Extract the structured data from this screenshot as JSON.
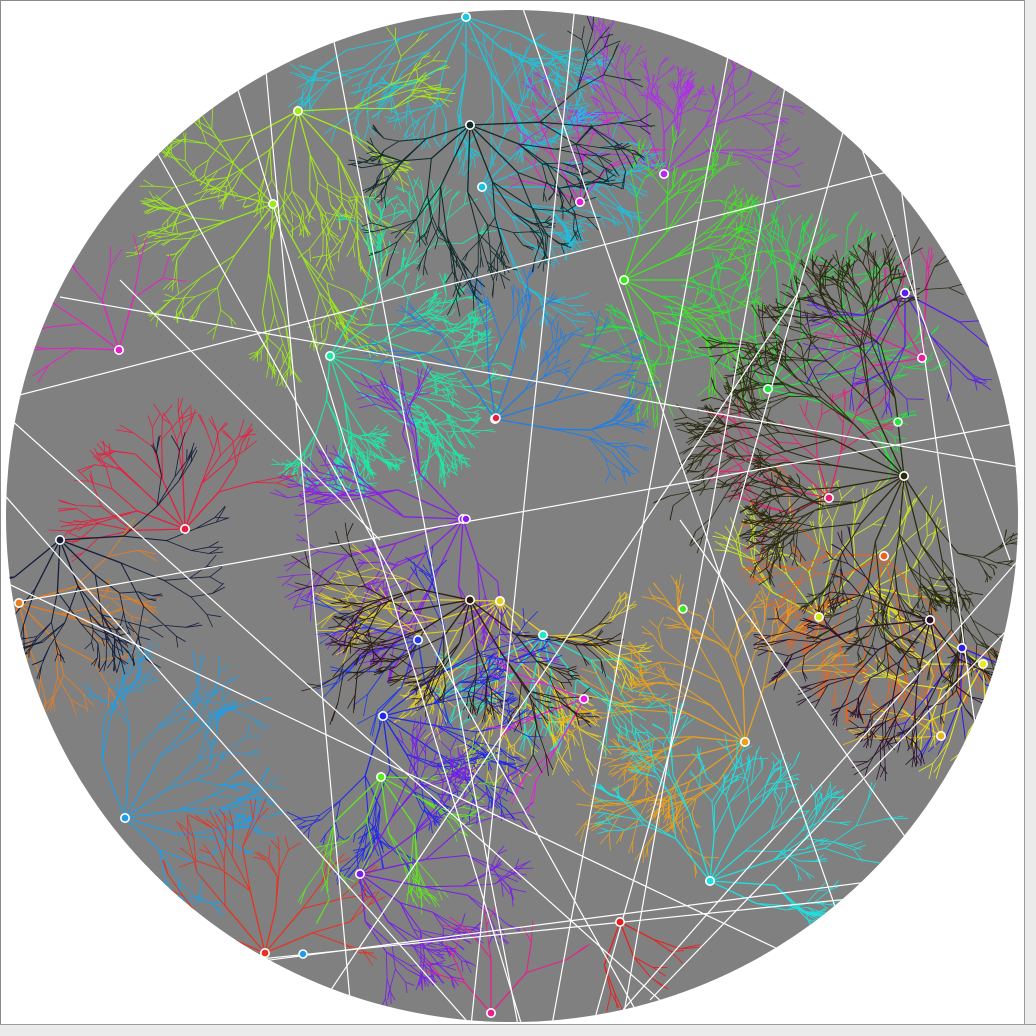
{
  "scene": {
    "background_color": "#ffffff",
    "arena_color": "#808080",
    "line_color": "#ffffff",
    "frame_color": "#ebebeb",
    "seed": 20240611
  },
  "colonies": [
    {
      "name": "cyan-top",
      "color": "#1ec8dc",
      "depth": 4,
      "branches": 7,
      "spread": 1.4
    },
    {
      "name": "violet-top",
      "color": "#b02ee8",
      "depth": 4,
      "branches": 7,
      "spread": 1.2
    },
    {
      "name": "lime-upper-left",
      "color": "#a6e81e",
      "depth": 4,
      "branches": 7,
      "spread": 1.5
    },
    {
      "name": "chartreuse-left",
      "color": "#9ae81e",
      "depth": 4,
      "branches": 6,
      "spread": 1.6
    },
    {
      "name": "cyan-center-top",
      "color": "#1ec0e0",
      "depth": 4,
      "branches": 7,
      "spread": 1.3
    },
    {
      "name": "magenta-small",
      "color": "#e81ed6",
      "depth": 2,
      "branches": 4,
      "spread": 1.0
    },
    {
      "name": "green-upper",
      "color": "#3ee81e",
      "depth": 4,
      "branches": 7,
      "spread": 1.4
    },
    {
      "name": "green-right",
      "color": "#1ee83e",
      "depth": 4,
      "branches": 8,
      "spread": 1.6
    },
    {
      "name": "magenta-right",
      "color": "#e81e9e",
      "depth": 2,
      "branches": 4,
      "spread": 1.0
    },
    {
      "name": "indigo-left",
      "color": "#5a1ee8",
      "depth": 3,
      "branches": 5,
      "spread": 1.2
    },
    {
      "name": "pink-left",
      "color": "#e81ec8",
      "depth": 2,
      "branches": 4,
      "spread": 1.0
    },
    {
      "name": "aquamarine-left",
      "color": "#1ee8a6",
      "depth": 5,
      "branches": 8,
      "spread": 1.5
    },
    {
      "name": "red-center",
      "color": "#e81e3e",
      "depth": 3,
      "branches": 7,
      "spread": 1.3
    },
    {
      "name": "blue-center",
      "color": "#1e7ee8",
      "depth": 4,
      "branches": 6,
      "spread": 1.3
    },
    {
      "name": "violet-center",
      "color": "#8a1ee8",
      "depth": 4,
      "branches": 8,
      "spread": 1.5
    },
    {
      "name": "yellow-right",
      "color": "#e8d01e",
      "depth": 4,
      "branches": 9,
      "spread": 1.4
    },
    {
      "name": "yellow-green-right",
      "color": "#cde81e",
      "depth": 3,
      "branches": 6,
      "spread": 1.2
    },
    {
      "name": "pink-right",
      "color": "#e81e6e",
      "depth": 3,
      "branches": 5,
      "spread": 1.2
    },
    {
      "name": "orange-center",
      "color": "#e8641e",
      "depth": 4,
      "branches": 6,
      "spread": 1.3
    },
    {
      "name": "teal-center",
      "color": "#1ee8c8",
      "depth": 3,
      "branches": 6,
      "spread": 1.2
    },
    {
      "name": "blue-small",
      "color": "#1e3ee8",
      "depth": 2,
      "branches": 5,
      "spread": 1.1
    },
    {
      "name": "blue-left",
      "color": "#1e28e8",
      "depth": 4,
      "branches": 7,
      "spread": 1.4
    },
    {
      "name": "orange-left",
      "color": "#e87e1e",
      "depth": 3,
      "branches": 5,
      "spread": 1.2
    },
    {
      "name": "sky-lower-left",
      "color": "#1e9ee8",
      "depth": 4,
      "branches": 7,
      "spread": 1.5
    },
    {
      "name": "red-lower",
      "color": "#e8321e",
      "depth": 3,
      "branches": 6,
      "spread": 1.3
    },
    {
      "name": "green-lower",
      "color": "#5ee81e",
      "depth": 3,
      "branches": 6,
      "spread": 1.3
    },
    {
      "name": "purple-lower",
      "color": "#7a1ee8",
      "depth": 4,
      "branches": 7,
      "spread": 1.4
    },
    {
      "name": "amber-lower-right",
      "color": "#e8a01e",
      "depth": 4,
      "branches": 9,
      "spread": 1.6
    },
    {
      "name": "cyan-right",
      "color": "#1ee0e0",
      "depth": 4,
      "branches": 8,
      "spread": 1.5
    },
    {
      "name": "orange-gold-right",
      "color": "#e8b41e",
      "depth": 2,
      "branches": 4,
      "spread": 1.0
    },
    {
      "name": "blue-right",
      "color": "#2e1ee8",
      "depth": 2,
      "branches": 4,
      "spread": 1.0
    },
    {
      "name": "yellow-bottom",
      "color": "#e8e81e",
      "depth": 3,
      "branches": 5,
      "spread": 1.2
    },
    {
      "name": "red-bottom",
      "color": "#e81e1e",
      "depth": 2,
      "branches": 3,
      "spread": 0.8
    },
    {
      "name": "magenta-center",
      "color": "#e81e8e",
      "depth": 2,
      "branches": 3,
      "spread": 0.8
    },
    {
      "name": "magenta-topmid",
      "color": "#e81ee0",
      "depth": 2,
      "branches": 3,
      "spread": 0.8
    },
    {
      "name": "dark-olive-mass",
      "color": "#2a2a10",
      "depth": 5,
      "branches": 12,
      "spread": 2.0
    },
    {
      "name": "dark-teal-top",
      "color": "#0e2a2a",
      "depth": 4,
      "branches": 8,
      "spread": 1.6
    },
    {
      "name": "dark-navy-left",
      "color": "#141e3a",
      "depth": 4,
      "branches": 7,
      "spread": 1.4
    },
    {
      "name": "dark-brown-center",
      "color": "#2a1a10",
      "depth": 4,
      "branches": 8,
      "spread": 1.5
    },
    {
      "name": "dark-plum-right",
      "color": "#2a102a",
      "depth": 4,
      "branches": 7,
      "spread": 1.4
    }
  ]
}
